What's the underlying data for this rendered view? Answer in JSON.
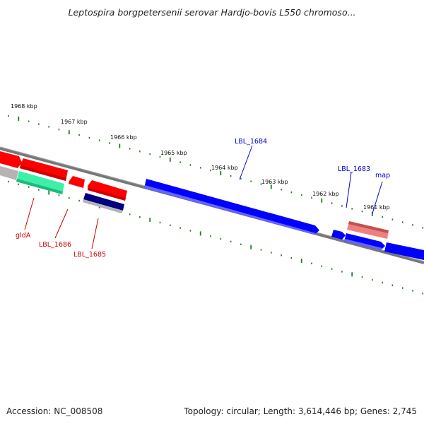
{
  "title": "Leptospira borgpetersenii serovar Hardjo-bovis L550 chromoso...",
  "footer": {
    "accession": "Accession: NC_008508",
    "summary": "Topology: circular; Length: 3,614,446 bp; Genes: 2,745"
  },
  "scale": {
    "ticks": [
      "1968 kbp",
      "1967 kbp",
      "1966 kbp",
      "1965 kbp",
      "1964 kbp",
      "1963 kbp",
      "1962 kbp",
      "1961 kbp"
    ]
  },
  "genes": {
    "forward": [
      "LBL_1684",
      "LBL_1683",
      "map"
    ],
    "reverse": [
      "gldA",
      "LBL_1686",
      "LBL_1685"
    ]
  },
  "colors": {
    "forward": "#0000ff",
    "reverse": "#ff0000",
    "backbone": "#777777",
    "ticks": "#1e7d1e",
    "forward_label": "#0000cc",
    "reverse_label": "#cc0000",
    "pseudo_red": "#f08080",
    "teal": "#3cf0a8",
    "navy": "#000080",
    "grey": "#b4b4b4"
  }
}
